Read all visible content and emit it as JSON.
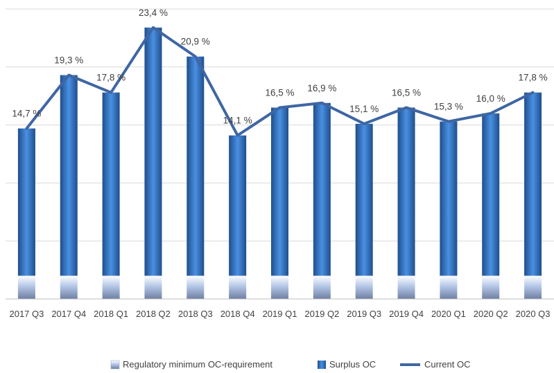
{
  "chart_data": {
    "type": "bar",
    "categories": [
      "2017 Q3",
      "2017 Q4",
      "2018 Q1",
      "2018 Q2",
      "2018 Q3",
      "2018 Q4",
      "2019 Q1",
      "2019 Q2",
      "2019 Q3",
      "2019 Q4",
      "2020 Q1",
      "2020 Q2",
      "2020 Q3"
    ],
    "ylim": [
      0,
      25
    ],
    "grid": true,
    "legend_position": "bottom",
    "data_labels": [
      "14,7 %",
      "19,3 %",
      "17,8 %",
      "23,4 %",
      "20,9 %",
      "14,1 %",
      "16,5 %",
      "16,9 %",
      "15,1 %",
      "16,5 %",
      "15,3 %",
      "16,0 %",
      "17,8 %"
    ],
    "series": [
      {
        "name": "Regulatory minimum OC-requirement",
        "kind": "stacked-bar",
        "color": "#b4c7e7",
        "values": [
          2,
          2,
          2,
          2,
          2,
          2,
          2,
          2,
          2,
          2,
          2,
          2,
          2
        ]
      },
      {
        "name": "Surplus OC",
        "kind": "stacked-bar",
        "color": "#2e75b6",
        "values": [
          12.7,
          17.3,
          15.8,
          21.4,
          18.9,
          12.1,
          14.5,
          14.9,
          13.1,
          14.5,
          13.3,
          14.0,
          15.8
        ]
      },
      {
        "name": "Current OC",
        "kind": "line",
        "color": "#3f66a3",
        "values": [
          14.7,
          19.3,
          17.8,
          23.4,
          20.9,
          14.1,
          16.5,
          16.9,
          15.1,
          16.5,
          15.3,
          16.0,
          17.8
        ]
      }
    ]
  }
}
